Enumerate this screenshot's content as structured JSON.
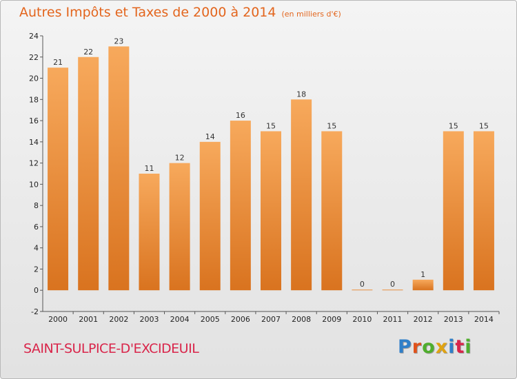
{
  "title": "Autres Impôts et Taxes de 2000 à 2014",
  "title_unit": "(en milliers d'€)",
  "town": "SAINT-SULPICE-D'EXCIDEUIL",
  "logo": [
    "P",
    "r",
    "o",
    "x",
    "i",
    "t",
    "i"
  ],
  "colors": {
    "bar_top": "#f7a95c",
    "bar_bottom": "#d9731f",
    "title": "#e3651d",
    "town": "#d9254a"
  },
  "chart_data": {
    "type": "bar",
    "title": "Autres Impôts et Taxes de 2000 à 2014",
    "subtitle": "(en milliers d'€)",
    "categories": [
      "2000",
      "2001",
      "2002",
      "2003",
      "2004",
      "2005",
      "2006",
      "2007",
      "2008",
      "2009",
      "2010",
      "2011",
      "2012",
      "2013",
      "2014"
    ],
    "values": [
      21,
      22,
      23,
      11,
      12,
      14,
      16,
      15,
      18,
      15,
      0,
      0,
      1,
      15,
      15
    ],
    "ylim": [
      -2,
      24
    ],
    "yticks": [
      -2,
      0,
      2,
      4,
      6,
      8,
      10,
      12,
      14,
      16,
      18,
      20,
      22,
      24
    ],
    "grid": false,
    "legend": "none"
  }
}
